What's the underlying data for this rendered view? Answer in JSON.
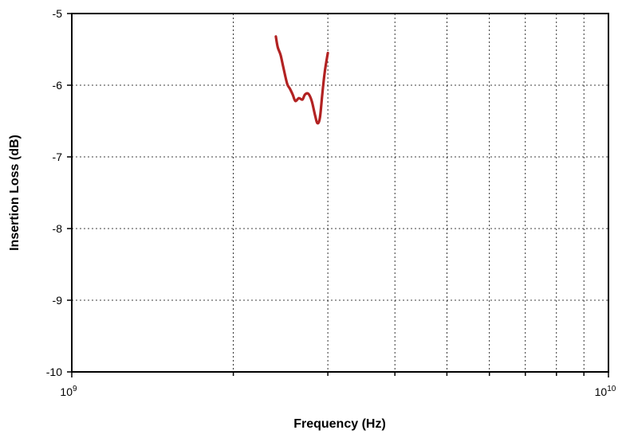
{
  "chart_data": {
    "type": "line",
    "xlabel": "Frequency (Hz)",
    "ylabel": "Insertion Loss (dB)",
    "xscale": "log",
    "xlim": [
      1000000000,
      10000000000
    ],
    "ylim": [
      -10,
      -5
    ],
    "grid": true,
    "x_tick_labels": [
      {
        "value": 1000000000,
        "base": "10",
        "exp": "9"
      },
      {
        "value": 10000000000,
        "base": "10",
        "exp": "10"
      }
    ],
    "x_minor_ticks": [
      2000000000,
      3000000000,
      4000000000,
      5000000000,
      6000000000,
      7000000000,
      8000000000,
      9000000000
    ],
    "y_ticks": [
      -5,
      -6,
      -7,
      -8,
      -9,
      -10
    ],
    "y_tick_labels": [
      "-5",
      "-6",
      "-7",
      "-8",
      "-9",
      "-10"
    ],
    "line_color": "#b22222",
    "series": [
      {
        "x": [
          2400000000,
          2420000000,
          2450000000,
          2480000000,
          2520000000,
          2550000000,
          2580000000,
          2610000000,
          2650000000,
          2690000000,
          2720000000,
          2760000000,
          2800000000,
          2840000000,
          2870000000,
          2900000000,
          2930000000,
          2960000000,
          3000000000
        ],
        "y": [
          -5.32,
          -5.47,
          -5.58,
          -5.76,
          -5.98,
          -6.05,
          -6.13,
          -6.22,
          -6.18,
          -6.2,
          -6.13,
          -6.12,
          -6.22,
          -6.42,
          -6.53,
          -6.45,
          -6.12,
          -5.82,
          -5.55
        ]
      }
    ]
  }
}
